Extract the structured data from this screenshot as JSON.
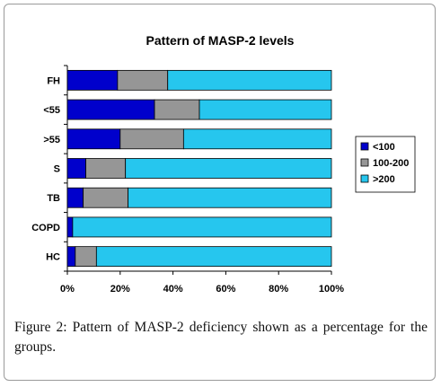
{
  "chart_data": {
    "type": "bar",
    "orientation": "horizontal",
    "stacked": true,
    "normalized": true,
    "title": "Pattern of MASP-2 levels",
    "xlabel": "",
    "ylabel": "",
    "categories": [
      "FH",
      "<55",
      ">55",
      "S",
      "TB",
      "COPD",
      "HC"
    ],
    "series": [
      {
        "name": "<100",
        "color": "#0000cc",
        "values": [
          19,
          33,
          20,
          7,
          6,
          2,
          3
        ]
      },
      {
        "name": "100-200",
        "color": "#969696",
        "values": [
          19,
          17,
          24,
          15,
          17,
          0,
          8
        ]
      },
      {
        "name": ">200",
        "color": "#26c6ee",
        "values": [
          62,
          50,
          56,
          78,
          77,
          98,
          89
        ]
      }
    ],
    "x_ticks": [
      "0%",
      "20%",
      "40%",
      "60%",
      "80%",
      "100%"
    ],
    "xlim": [
      0,
      100
    ],
    "grid": false,
    "legend_position": "right"
  },
  "caption": {
    "label": "Figure 2:",
    "text": " Pattern of MASP-2 deficiency shown as a percentage for the groups."
  }
}
